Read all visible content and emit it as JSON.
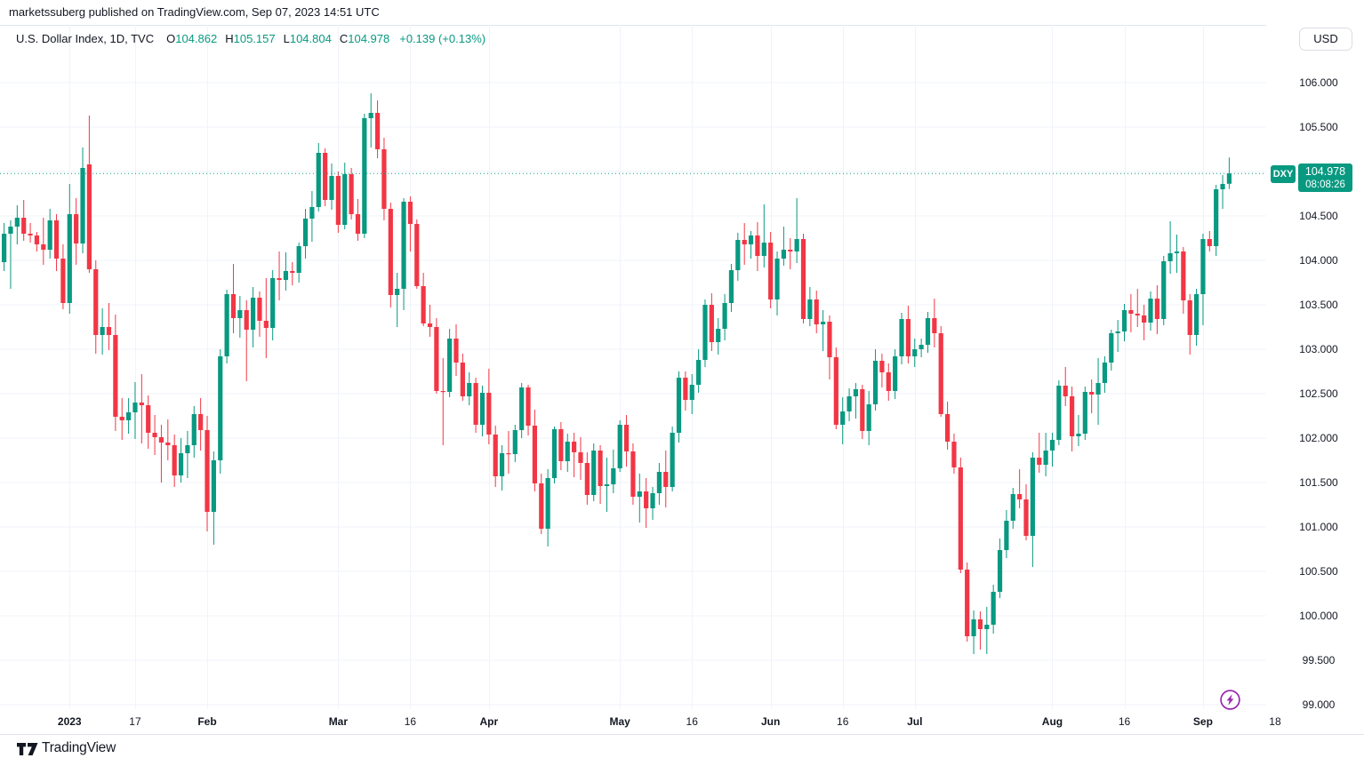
{
  "meta": {
    "publish_line": "marketssuberg published on TradingView.com, Sep 07, 2023 14:51 UTC"
  },
  "header": {
    "symbol_title": "U.S. Dollar Index, 1D, TVC",
    "ohlc": {
      "o_label": "O",
      "o_value": "104.862",
      "h_label": "H",
      "h_value": "105.157",
      "l_label": "L",
      "l_value": "104.804",
      "c_label": "C",
      "c_value": "104.978"
    },
    "change": "+0.139 (+0.13%)",
    "currency_button": "USD"
  },
  "price_label": {
    "symbol": "DXY",
    "price": "104.978",
    "countdown": "08:08:26"
  },
  "footer": {
    "brand": "TradingView"
  },
  "icons": {
    "boost": "lightning-icon",
    "logo": "tradingview-logo-icon"
  },
  "colors": {
    "up": "#089981",
    "down": "#f23645",
    "grid": "#f0f3fa",
    "border": "#e0e3eb",
    "text": "#131722",
    "boost_purple": "#9c27b0"
  },
  "chart_data": {
    "type": "candlestick",
    "title": "U.S. Dollar Index",
    "interval": "1D",
    "exchange": "TVC",
    "legend_change": "+0.139 (+0.13%)",
    "last_price": 104.978,
    "countdown": "08:08:26",
    "y_axis_range": [
      98.85,
      106.37
    ],
    "grid": true,
    "y_ticks": [
      "106.000",
      "105.500",
      "105.000",
      "104.500",
      "104.000",
      "103.500",
      "103.000",
      "102.500",
      "102.000",
      "101.500",
      "101.000",
      "100.500",
      "100.000",
      "99.500",
      "99.000"
    ],
    "x_ticks": [
      {
        "label": "2023",
        "index": 10,
        "major": true
      },
      {
        "label": "17",
        "index": 20,
        "major": false
      },
      {
        "label": "Feb",
        "index": 31,
        "major": true
      },
      {
        "label": "Mar",
        "index": 51,
        "major": true
      },
      {
        "label": "16",
        "index": 62,
        "major": false
      },
      {
        "label": "Apr",
        "index": 74,
        "major": true
      },
      {
        "label": "May",
        "index": 94,
        "major": true
      },
      {
        "label": "16",
        "index": 105,
        "major": false
      },
      {
        "label": "Jun",
        "index": 117,
        "major": true
      },
      {
        "label": "16",
        "index": 128,
        "major": false
      },
      {
        "label": "Jul",
        "index": 139,
        "major": true
      },
      {
        "label": "Aug",
        "index": 160,
        "major": true
      },
      {
        "label": "16",
        "index": 171,
        "major": false
      },
      {
        "label": "Sep",
        "index": 183,
        "major": true
      },
      {
        "label": "18",
        "index": 194,
        "major": false
      }
    ],
    "candles": [
      [
        103.98,
        104.42,
        103.88,
        104.3
      ],
      [
        104.3,
        104.45,
        103.68,
        104.38
      ],
      [
        104.38,
        104.62,
        104.18,
        104.48
      ],
      [
        104.48,
        104.68,
        104.22,
        104.3
      ],
      [
        104.3,
        104.42,
        104.2,
        104.28
      ],
      [
        104.28,
        104.32,
        104.1,
        104.18
      ],
      [
        104.18,
        104.48,
        103.95,
        104.12
      ],
      [
        104.12,
        104.58,
        104.02,
        104.45
      ],
      [
        104.45,
        104.52,
        103.88,
        104.02
      ],
      [
        104.02,
        104.18,
        103.45,
        103.52
      ],
      [
        103.52,
        104.86,
        103.4,
        104.52
      ],
      [
        104.52,
        104.7,
        103.95,
        104.19
      ],
      [
        104.19,
        105.27,
        104.08,
        105.04
      ],
      [
        105.08,
        105.63,
        103.86,
        103.9
      ],
      [
        103.9,
        104.0,
        102.95,
        103.16
      ],
      [
        103.16,
        103.46,
        102.94,
        103.25
      ],
      [
        103.25,
        103.52,
        102.99,
        103.16
      ],
      [
        103.16,
        103.39,
        102.08,
        102.24
      ],
      [
        102.24,
        102.45,
        101.98,
        102.2
      ],
      [
        102.2,
        102.45,
        102.05,
        102.29
      ],
      [
        102.29,
        102.63,
        101.99,
        102.4
      ],
      [
        102.4,
        102.72,
        101.94,
        102.37
      ],
      [
        102.37,
        102.48,
        101.88,
        102.06
      ],
      [
        102.06,
        102.26,
        101.81,
        102.01
      ],
      [
        102.01,
        102.15,
        101.5,
        101.95
      ],
      [
        101.95,
        102.21,
        101.75,
        101.92
      ],
      [
        101.92,
        102.04,
        101.45,
        101.58
      ],
      [
        101.58,
        102.0,
        101.5,
        101.83
      ],
      [
        101.83,
        102.08,
        101.55,
        101.92
      ],
      [
        101.92,
        102.36,
        101.78,
        102.27
      ],
      [
        102.27,
        102.45,
        101.86,
        102.09
      ],
      [
        102.09,
        102.25,
        100.95,
        101.17
      ],
      [
        101.17,
        101.85,
        100.8,
        101.75
      ],
      [
        101.75,
        103.0,
        101.6,
        102.92
      ],
      [
        102.92,
        103.67,
        102.84,
        103.62
      ],
      [
        103.62,
        103.96,
        103.18,
        103.35
      ],
      [
        103.35,
        103.6,
        103.13,
        103.44
      ],
      [
        103.44,
        103.55,
        102.64,
        103.22
      ],
      [
        103.22,
        103.7,
        103.02,
        103.58
      ],
      [
        103.58,
        103.65,
        103.14,
        103.32
      ],
      [
        103.32,
        103.8,
        102.9,
        103.24
      ],
      [
        103.24,
        103.89,
        103.1,
        103.8
      ],
      [
        103.8,
        104.1,
        103.55,
        103.78
      ],
      [
        103.78,
        104.09,
        103.66,
        103.88
      ],
      [
        103.88,
        103.98,
        103.72,
        103.86
      ],
      [
        103.86,
        104.2,
        103.75,
        104.16
      ],
      [
        104.16,
        104.58,
        104.02,
        104.47
      ],
      [
        104.47,
        104.78,
        104.21,
        104.6
      ],
      [
        104.6,
        105.32,
        104.55,
        105.21
      ],
      [
        105.21,
        105.26,
        104.61,
        104.68
      ],
      [
        104.68,
        105.09,
        104.57,
        104.95
      ],
      [
        104.95,
        105.0,
        104.31,
        104.4
      ],
      [
        104.4,
        105.1,
        104.35,
        104.97
      ],
      [
        104.97,
        105.04,
        104.46,
        104.52
      ],
      [
        104.52,
        104.69,
        104.22,
        104.3
      ],
      [
        104.3,
        105.65,
        104.25,
        105.6
      ],
      [
        105.6,
        105.88,
        105.27,
        105.66
      ],
      [
        105.66,
        105.8,
        105.15,
        105.25
      ],
      [
        105.25,
        105.38,
        104.45,
        104.58
      ],
      [
        104.58,
        104.65,
        103.47,
        103.61
      ],
      [
        103.61,
        103.86,
        103.25,
        103.68
      ],
      [
        103.68,
        104.7,
        103.44,
        104.66
      ],
      [
        104.66,
        104.72,
        104.1,
        104.41
      ],
      [
        104.41,
        104.46,
        103.68,
        103.71
      ],
      [
        103.71,
        103.86,
        103.26,
        103.29
      ],
      [
        103.29,
        103.5,
        103.14,
        103.25
      ],
      [
        103.25,
        103.35,
        102.5,
        102.53
      ],
      [
        102.53,
        102.9,
        101.92,
        102.52
      ],
      [
        102.52,
        103.23,
        102.46,
        103.12
      ],
      [
        103.12,
        103.28,
        102.7,
        102.85
      ],
      [
        102.85,
        102.95,
        102.42,
        102.47
      ],
      [
        102.47,
        102.74,
        102.37,
        102.62
      ],
      [
        102.62,
        102.68,
        102.06,
        102.15
      ],
      [
        102.15,
        102.59,
        102.02,
        102.51
      ],
      [
        102.51,
        102.78,
        101.93,
        102.04
      ],
      [
        102.04,
        102.14,
        101.45,
        101.57
      ],
      [
        101.57,
        101.92,
        101.41,
        101.83
      ],
      [
        101.83,
        102.08,
        101.6,
        101.82
      ],
      [
        101.82,
        102.15,
        101.73,
        102.09
      ],
      [
        102.09,
        102.62,
        102.0,
        102.57
      ],
      [
        102.57,
        102.6,
        102.03,
        102.14
      ],
      [
        102.14,
        102.32,
        101.4,
        101.49
      ],
      [
        101.49,
        101.6,
        100.92,
        100.98
      ],
      [
        100.98,
        101.65,
        100.78,
        101.55
      ],
      [
        101.55,
        102.13,
        101.49,
        102.1
      ],
      [
        102.1,
        102.18,
        101.64,
        101.74
      ],
      [
        101.74,
        102.05,
        101.62,
        101.96
      ],
      [
        101.96,
        102.06,
        101.56,
        101.84
      ],
      [
        101.84,
        102.01,
        101.53,
        101.72
      ],
      [
        101.72,
        101.84,
        101.25,
        101.36
      ],
      [
        101.36,
        101.94,
        101.29,
        101.86
      ],
      [
        101.86,
        101.92,
        101.26,
        101.46
      ],
      [
        101.46,
        101.78,
        101.17,
        101.48
      ],
      [
        101.48,
        101.87,
        101.38,
        101.66
      ],
      [
        101.66,
        102.2,
        101.62,
        102.15
      ],
      [
        102.15,
        102.26,
        101.68,
        101.85
      ],
      [
        101.85,
        101.94,
        101.25,
        101.34
      ],
      [
        101.34,
        101.6,
        101.05,
        101.4
      ],
      [
        101.4,
        101.55,
        100.99,
        101.21
      ],
      [
        101.21,
        101.45,
        101.08,
        101.38
      ],
      [
        101.38,
        101.72,
        101.25,
        101.62
      ],
      [
        101.62,
        101.86,
        101.22,
        101.45
      ],
      [
        101.45,
        102.13,
        101.4,
        102.06
      ],
      [
        102.06,
        102.75,
        101.95,
        102.68
      ],
      [
        102.68,
        102.75,
        102.31,
        102.43
      ],
      [
        102.43,
        102.72,
        102.27,
        102.6
      ],
      [
        102.6,
        103.0,
        102.51,
        102.88
      ],
      [
        102.88,
        103.56,
        102.8,
        103.5
      ],
      [
        103.5,
        103.63,
        102.98,
        103.08
      ],
      [
        103.08,
        103.35,
        102.94,
        103.23
      ],
      [
        103.23,
        103.62,
        103.1,
        103.52
      ],
      [
        103.52,
        103.96,
        103.42,
        103.89
      ],
      [
        103.89,
        104.31,
        103.77,
        104.23
      ],
      [
        104.23,
        104.42,
        103.95,
        104.18
      ],
      [
        104.18,
        104.33,
        104.02,
        104.28
      ],
      [
        104.28,
        104.43,
        103.88,
        104.05
      ],
      [
        104.05,
        104.63,
        103.92,
        104.2
      ],
      [
        104.2,
        104.32,
        103.46,
        103.56
      ],
      [
        103.56,
        104.1,
        103.38,
        104.02
      ],
      [
        104.02,
        104.38,
        103.94,
        104.12
      ],
      [
        104.12,
        104.25,
        103.9,
        104.1
      ],
      [
        104.1,
        104.7,
        103.97,
        104.24
      ],
      [
        104.24,
        104.3,
        103.29,
        103.34
      ],
      [
        103.34,
        103.7,
        103.26,
        103.56
      ],
      [
        103.56,
        103.66,
        103.18,
        103.28
      ],
      [
        103.28,
        103.44,
        102.98,
        103.31
      ],
      [
        103.31,
        103.38,
        102.66,
        102.91
      ],
      [
        102.91,
        103.02,
        102.1,
        102.15
      ],
      [
        102.15,
        102.46,
        101.93,
        102.3
      ],
      [
        102.3,
        102.56,
        102.19,
        102.47
      ],
      [
        102.47,
        102.62,
        102.22,
        102.55
      ],
      [
        102.55,
        102.6,
        101.99,
        102.08
      ],
      [
        102.08,
        102.53,
        101.92,
        102.38
      ],
      [
        102.38,
        103.0,
        102.31,
        102.87
      ],
      [
        102.87,
        102.95,
        102.57,
        102.74
      ],
      [
        102.74,
        102.84,
        102.42,
        102.53
      ],
      [
        102.53,
        103.0,
        102.44,
        102.92
      ],
      [
        102.92,
        103.41,
        102.83,
        103.34
      ],
      [
        103.34,
        103.49,
        102.84,
        102.92
      ],
      [
        102.92,
        103.12,
        102.8,
        103.0
      ],
      [
        103.0,
        103.12,
        102.91,
        103.05
      ],
      [
        103.05,
        103.42,
        102.96,
        103.35
      ],
      [
        103.35,
        103.57,
        103.02,
        103.18
      ],
      [
        103.18,
        103.26,
        102.24,
        102.27
      ],
      [
        102.27,
        102.41,
        101.87,
        101.96
      ],
      [
        101.96,
        102.05,
        101.6,
        101.67
      ],
      [
        101.67,
        101.78,
        100.48,
        100.52
      ],
      [
        100.52,
        100.6,
        99.71,
        99.77
      ],
      [
        99.77,
        100.06,
        99.57,
        99.96
      ],
      [
        99.96,
        100.05,
        99.62,
        99.85
      ],
      [
        99.85,
        100.1,
        99.57,
        99.9
      ],
      [
        99.9,
        100.35,
        99.8,
        100.27
      ],
      [
        100.27,
        100.87,
        100.2,
        100.74
      ],
      [
        100.74,
        101.19,
        100.65,
        101.07
      ],
      [
        101.07,
        101.44,
        100.98,
        101.37
      ],
      [
        101.37,
        101.65,
        101.21,
        101.31
      ],
      [
        101.31,
        101.48,
        100.85,
        100.9
      ],
      [
        100.9,
        101.84,
        100.55,
        101.78
      ],
      [
        101.78,
        102.06,
        101.61,
        101.7
      ],
      [
        101.7,
        102.06,
        101.57,
        101.86
      ],
      [
        101.86,
        102.06,
        101.68,
        101.98
      ],
      [
        101.98,
        102.65,
        101.92,
        102.59
      ],
      [
        102.59,
        102.8,
        102.36,
        102.47
      ],
      [
        102.47,
        102.58,
        101.85,
        102.02
      ],
      [
        102.02,
        102.26,
        101.91,
        102.05
      ],
      [
        102.05,
        102.58,
        101.98,
        102.52
      ],
      [
        102.52,
        102.66,
        102.28,
        102.49
      ],
      [
        102.49,
        102.9,
        102.15,
        102.62
      ],
      [
        102.62,
        102.92,
        102.51,
        102.85
      ],
      [
        102.85,
        103.22,
        102.76,
        103.18
      ],
      [
        103.18,
        103.33,
        102.97,
        103.2
      ],
      [
        103.2,
        103.51,
        103.09,
        103.44
      ],
      [
        103.44,
        103.62,
        103.19,
        103.4
      ],
      [
        103.4,
        103.68,
        103.25,
        103.38
      ],
      [
        103.38,
        103.5,
        103.1,
        103.3
      ],
      [
        103.3,
        103.65,
        103.21,
        103.57
      ],
      [
        103.57,
        103.72,
        103.17,
        103.34
      ],
      [
        103.34,
        104.05,
        103.27,
        103.99
      ],
      [
        103.99,
        104.44,
        103.85,
        104.08
      ],
      [
        104.08,
        104.29,
        103.86,
        104.1
      ],
      [
        104.1,
        104.15,
        103.4,
        103.55
      ],
      [
        103.55,
        103.62,
        102.94,
        103.16
      ],
      [
        103.16,
        103.68,
        103.04,
        103.62
      ],
      [
        103.62,
        104.3,
        103.27,
        104.24
      ],
      [
        104.24,
        104.33,
        104.1,
        104.16
      ],
      [
        104.16,
        104.85,
        104.05,
        104.8
      ],
      [
        104.8,
        104.96,
        104.58,
        104.86
      ],
      [
        104.862,
        105.157,
        104.804,
        104.978
      ]
    ]
  }
}
